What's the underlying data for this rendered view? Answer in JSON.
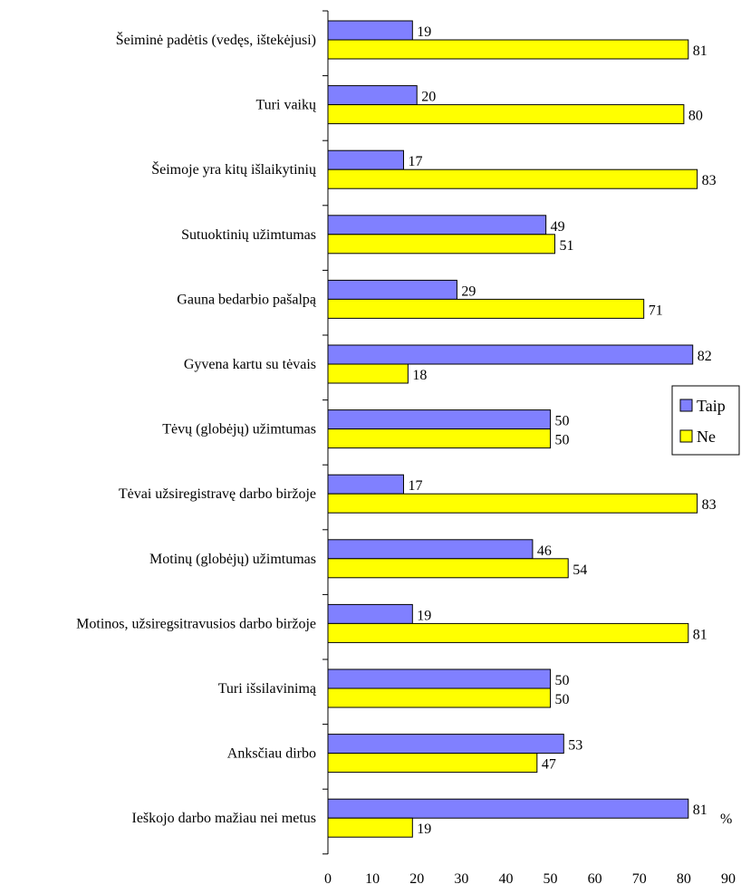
{
  "chart_data": {
    "type": "bar",
    "orientation": "horizontal",
    "title": "",
    "xlabel": "",
    "ylabel": "",
    "unit_label": "%",
    "categories": [
      "Šeiminė  padėtis (vedęs, ištekėjusi)",
      "Turi vaikų",
      "Šeimoje yra kitų išlaikytinių",
      "Sutuoktinių užimtumas",
      "Gauna bedarbio pašalpą",
      "Gyvena kartu su tėvais",
      "Tėvų  (globėjų)  užimtumas",
      "Tėvai  užsiregistravę  darbo biržoje",
      "Motinų  (globėjų)  užimtumas",
      "Motinos, užsiregsitravusios darbo biržoje",
      "Turi išsilavinimą",
      "Anksčiau dirbo",
      "Ieškojo darbo mažiau nei metus"
    ],
    "series": [
      {
        "name": "Taip",
        "color": "#8080ff",
        "values": [
          19,
          20,
          17,
          49,
          29,
          82,
          50,
          17,
          46,
          19,
          50,
          53,
          81
        ]
      },
      {
        "name": "Ne",
        "color": "#ffff00",
        "values": [
          81,
          80,
          83,
          51,
          71,
          18,
          50,
          83,
          54,
          81,
          50,
          47,
          19
        ]
      }
    ],
    "xlim": [
      0,
      90
    ],
    "xticks": [
      0,
      10,
      20,
      30,
      40,
      50,
      60,
      70,
      80,
      90
    ],
    "grid": false,
    "legend_position": "right"
  }
}
